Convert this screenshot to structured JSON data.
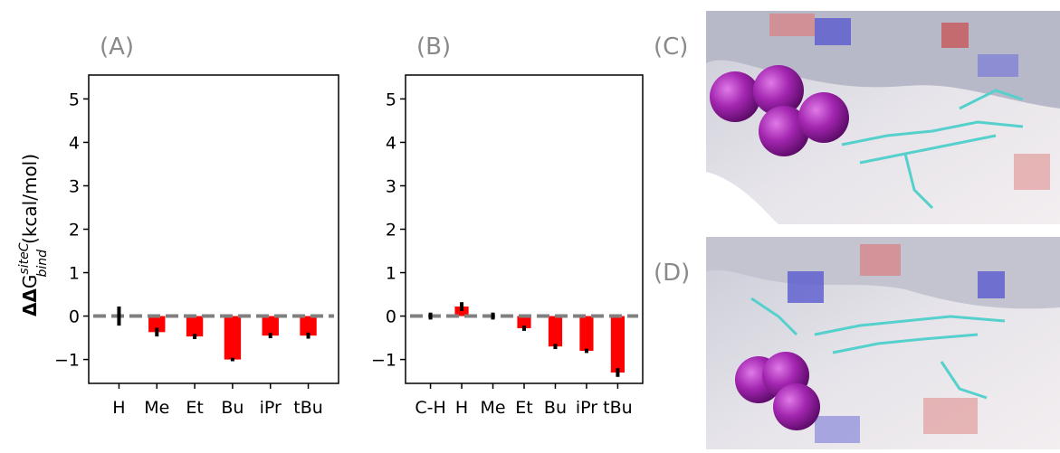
{
  "chart_data": [
    {
      "type": "bar",
      "panel_label": "(A)",
      "categories": [
        "H",
        "Me",
        "Et",
        "Bu",
        "iPr",
        "tBu"
      ],
      "values": [
        0,
        -0.37,
        -0.47,
        -1.0,
        -0.45,
        -0.45
      ],
      "errors": [
        0.22,
        0.1,
        0.06,
        0.04,
        0.06,
        0.07
      ],
      "color": "#ff0000",
      "error_color": "#000000",
      "reference_line": 0,
      "reference_color": "#808080",
      "ylim": [
        -1.55,
        5.55
      ],
      "yticks": [
        {
          "value": -1,
          "label": "−1"
        },
        0,
        1,
        2,
        3,
        4,
        5
      ],
      "ylabel": {
        "prefix": "ΔΔ",
        "main": "G",
        "superscript": "siteC",
        "subscript": "bind",
        "unit": "(kcal/mol)"
      }
    },
    {
      "type": "bar",
      "panel_label": "(B)",
      "categories": [
        "C-H",
        "H",
        "Me",
        "Et",
        "Bu",
        "iPr",
        "tBu"
      ],
      "values": [
        0,
        0.22,
        0,
        -0.28,
        -0.7,
        -0.8,
        -1.3
      ],
      "errors": [
        0.08,
        0.1,
        0.08,
        0.06,
        0.06,
        0.05,
        0.1
      ],
      "color": "#ff0000",
      "error_color": "#000000",
      "reference_line": 0,
      "reference_color": "#808080",
      "ylim": [
        -1.55,
        5.55
      ],
      "yticks": [
        {
          "value": -1,
          "label": "−1"
        },
        0,
        1,
        2,
        3,
        4,
        5
      ]
    }
  ],
  "panels": [
    {
      "label": "(C)"
    },
    {
      "label": "(D)"
    }
  ]
}
